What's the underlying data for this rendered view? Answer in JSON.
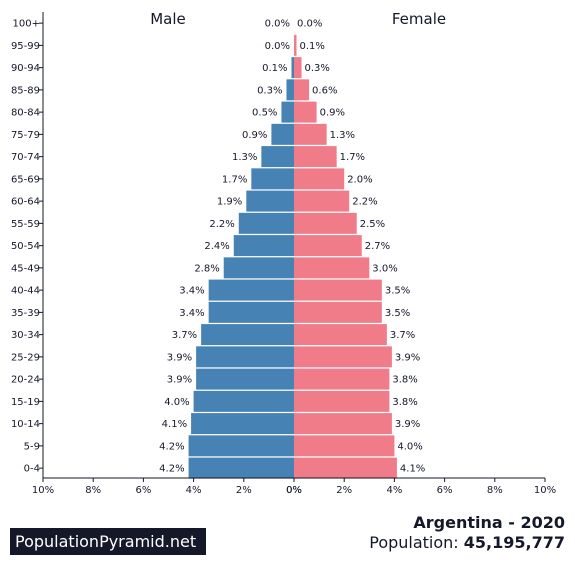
{
  "chart_data": {
    "type": "bar",
    "orientation": "horizontal-pyramid",
    "categories": [
      "100+",
      "95-99",
      "90-94",
      "85-89",
      "80-84",
      "75-79",
      "70-74",
      "65-69",
      "60-64",
      "55-59",
      "50-54",
      "45-49",
      "40-44",
      "35-39",
      "30-34",
      "25-29",
      "20-24",
      "15-19",
      "10-14",
      "5-9",
      "0-4"
    ],
    "series": [
      {
        "name": "Male",
        "color": "#4682b4",
        "values": [
          0.0,
          0.0,
          0.1,
          0.3,
          0.5,
          0.9,
          1.3,
          1.7,
          1.9,
          2.2,
          2.4,
          2.8,
          3.4,
          3.4,
          3.7,
          3.9,
          3.9,
          4.0,
          4.1,
          4.2,
          4.2
        ],
        "labels": [
          "0.0%",
          "0.0%",
          "0.1%",
          "0.3%",
          "0.5%",
          "0.9%",
          "1.3%",
          "1.7%",
          "1.9%",
          "2.2%",
          "2.4%",
          "2.8%",
          "3.4%",
          "3.4%",
          "3.7%",
          "3.9%",
          "3.9%",
          "4.0%",
          "4.1%",
          "4.2%",
          "4.2%"
        ]
      },
      {
        "name": "Female",
        "color": "#f07c8a",
        "values": [
          0.0,
          0.1,
          0.3,
          0.6,
          0.9,
          1.3,
          1.7,
          2.0,
          2.2,
          2.5,
          2.7,
          3.0,
          3.5,
          3.5,
          3.7,
          3.9,
          3.8,
          3.8,
          3.9,
          4.0,
          4.1
        ],
        "labels": [
          "0.0%",
          "0.1%",
          "0.3%",
          "0.6%",
          "0.9%",
          "1.3%",
          "1.7%",
          "2.0%",
          "2.2%",
          "2.5%",
          "2.7%",
          "3.0%",
          "3.5%",
          "3.5%",
          "3.7%",
          "3.9%",
          "3.8%",
          "3.8%",
          "3.9%",
          "4.0%",
          "4.1%"
        ]
      }
    ],
    "xlim": [
      0,
      10
    ],
    "xticks_left": [
      "10%",
      "8%",
      "6%",
      "4%",
      "2%",
      "0%"
    ],
    "xticks_right": [
      "0%",
      "2%",
      "4%",
      "6%",
      "8%",
      "10%"
    ],
    "grid": false,
    "legend": "none"
  },
  "logo": {
    "text": "PopulationPyramid.net"
  },
  "caption": {
    "country_year": "Argentina - 2020",
    "population_label": "Population:",
    "population_value": "45,195,777"
  }
}
